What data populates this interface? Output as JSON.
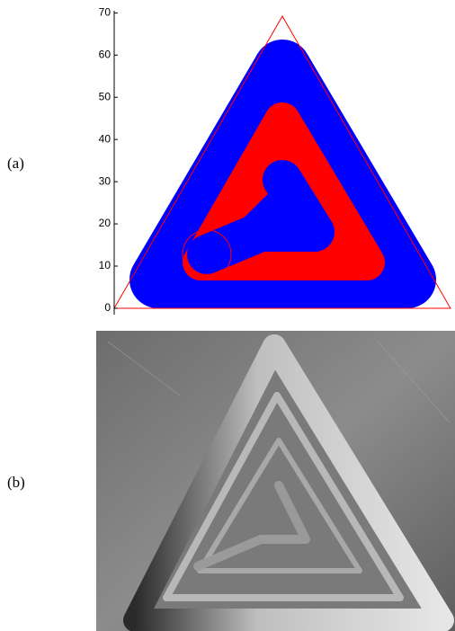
{
  "panels": [
    {
      "label": "(a)"
    },
    {
      "label": "(b)"
    }
  ],
  "chart_data": {
    "type": "toolpath",
    "ylim": [
      -1.5,
      70.5
    ],
    "yticks": [
      0,
      10,
      20,
      30,
      40,
      50,
      60,
      70
    ]
  }
}
